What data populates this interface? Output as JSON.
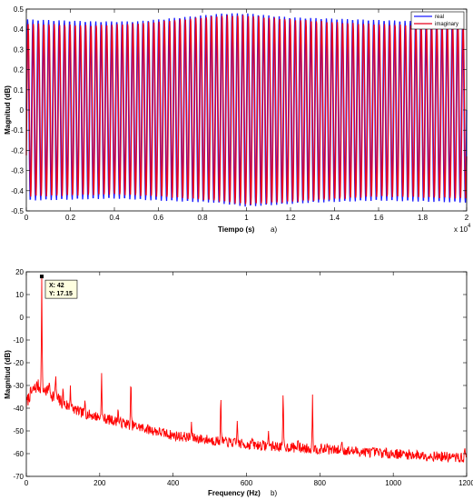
{
  "chart_data": [
    {
      "type": "line",
      "panel_letter": "a)",
      "xlabel": "Tiempo (s)",
      "ylabel": "Magnitud (dB)",
      "xlim": [
        0,
        2
      ],
      "ylim": [
        -0.5,
        0.5
      ],
      "x_multiplier_label": "x 10",
      "x_multiplier_exp": "4",
      "x_ticks": [
        "0",
        "0.2",
        "0.4",
        "0.6",
        "0.8",
        "1",
        "1.2",
        "1.4",
        "1.6",
        "1.8",
        "2"
      ],
      "y_ticks": [
        "-0.5",
        "-0.4",
        "-0.3",
        "-0.2",
        "-0.1",
        "0",
        "0.1",
        "0.2",
        "0.3",
        "0.4",
        "0.5"
      ],
      "legend_position": "top-right",
      "cycles": 84,
      "series": [
        {
          "name": "real",
          "color": "#1a1aff",
          "envelope": [
            [
              0,
              0.45
            ],
            [
              0.3,
              0.44
            ],
            [
              0.5,
              0.44
            ],
            [
              0.7,
              0.46
            ],
            [
              0.9,
              0.48
            ],
            [
              1.0,
              0.48
            ],
            [
              1.2,
              0.46
            ],
            [
              1.5,
              0.45
            ],
            [
              1.8,
              0.44
            ],
            [
              2.0,
              0.45
            ]
          ],
          "min_envelope": [
            [
              0,
              -0.45
            ],
            [
              0.4,
              -0.44
            ],
            [
              0.6,
              -0.45
            ],
            [
              0.85,
              -0.46
            ],
            [
              1.0,
              -0.48
            ],
            [
              1.3,
              -0.46
            ],
            [
              1.6,
              -0.45
            ],
            [
              2.0,
              -0.46
            ]
          ]
        },
        {
          "name": "imaginary",
          "color": "#e8001c",
          "envelope": [
            [
              0,
              0.43
            ],
            [
              0.3,
              0.42
            ],
            [
              0.5,
              0.43
            ],
            [
              0.7,
              0.45
            ],
            [
              0.9,
              0.47
            ],
            [
              1.0,
              0.47
            ],
            [
              1.2,
              0.45
            ],
            [
              1.5,
              0.43
            ],
            [
              1.8,
              0.42
            ],
            [
              2.0,
              0.43
            ]
          ],
          "min_envelope": [
            [
              0,
              -0.43
            ],
            [
              0.4,
              -0.42
            ],
            [
              0.6,
              -0.43
            ],
            [
              0.85,
              -0.45
            ],
            [
              1.0,
              -0.47
            ],
            [
              1.3,
              -0.45
            ],
            [
              1.6,
              -0.43
            ],
            [
              2.0,
              -0.44
            ]
          ]
        }
      ]
    },
    {
      "type": "line",
      "panel_letter": "b)",
      "xlabel": "Frequency (Hz)",
      "ylabel": "Magnitud (dB)",
      "xlim": [
        0,
        1200
      ],
      "ylim": [
        -70,
        20
      ],
      "x_ticks": [
        "0",
        "200",
        "400",
        "600",
        "800",
        "1000",
        "1200"
      ],
      "y_ticks": [
        "-70",
        "-60",
        "-50",
        "-40",
        "-30",
        "-20",
        "-10",
        "0",
        "10",
        "20"
      ],
      "datatip": {
        "x": 42,
        "y": 17.15,
        "x_text": "X: 42",
        "y_text": "Y: 17.15"
      },
      "series": [
        {
          "name": "",
          "color": "#ff0000",
          "baseline": [
            [
              0,
              -38
            ],
            [
              10,
              -34
            ],
            [
              20,
              -32
            ],
            [
              30,
              -30
            ],
            [
              50,
              -32
            ],
            [
              70,
              -34
            ],
            [
              100,
              -38
            ],
            [
              150,
              -42
            ],
            [
              200,
              -44
            ],
            [
              300,
              -48
            ],
            [
              400,
              -52
            ],
            [
              500,
              -54
            ],
            [
              600,
              -56
            ],
            [
              700,
              -57
            ],
            [
              800,
              -58
            ],
            [
              900,
              -59
            ],
            [
              1000,
              -60
            ],
            [
              1100,
              -61
            ],
            [
              1200,
              -62
            ]
          ],
          "peaks": [
            [
              42,
              17.15
            ],
            [
              62,
              -27
            ],
            [
              80,
              -23
            ],
            [
              100,
              -30
            ],
            [
              120,
              -30
            ],
            [
              160,
              -35
            ],
            [
              205,
              -22
            ],
            [
              250,
              -39
            ],
            [
              285,
              -23
            ],
            [
              450,
              -46
            ],
            [
              530,
              -31
            ],
            [
              575,
              -44
            ],
            [
              615,
              -52
            ],
            [
              660,
              -50
            ],
            [
              700,
              -28
            ],
            [
              740,
              -53
            ],
            [
              780,
              -34
            ],
            [
              820,
              -55
            ],
            [
              860,
              -53
            ],
            [
              1195,
              -57
            ]
          ]
        }
      ]
    }
  ]
}
